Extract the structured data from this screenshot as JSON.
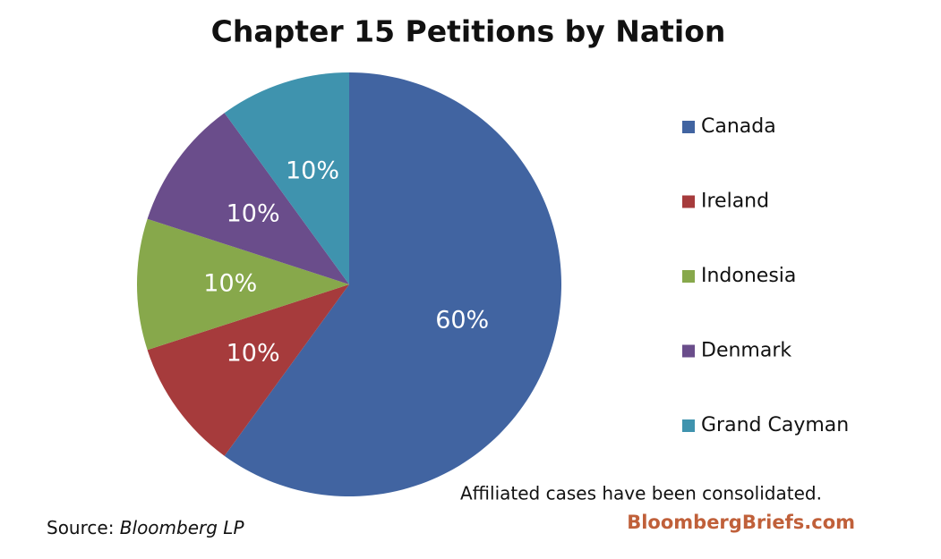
{
  "chart_data": {
    "type": "pie",
    "title": "Chapter 15 Petitions by Nation",
    "categories": [
      "Canada",
      "Ireland",
      "Indonesia",
      "Denmark",
      "Grand Cayman"
    ],
    "values": [
      60,
      10,
      10,
      10,
      10
    ],
    "value_labels": [
      "60%",
      "10%",
      "10%",
      "10%",
      "10%"
    ],
    "colors": [
      "#4164a1",
      "#a63b3c",
      "#87a84b",
      "#6a4d8b",
      "#3f93ae"
    ],
    "legend": "right",
    "note": "Affiliated cases have been consolidated.",
    "source_label": "Source:",
    "source": "Bloomberg LP",
    "brand": "BloombergBriefs.com"
  }
}
